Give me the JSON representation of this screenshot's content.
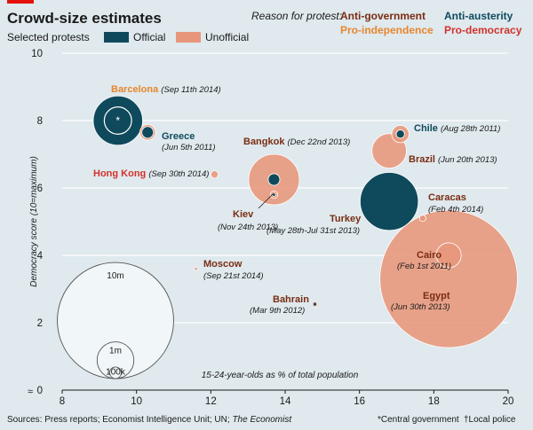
{
  "chart_data": {
    "type": "scatter",
    "title": "Crowd-size estimates",
    "subtitle": "Selected protests",
    "legend": {
      "official_label": "Official",
      "unofficial_label": "Unofficial",
      "official_color": "#0f4a5c",
      "unofficial_color": "#e8967b"
    },
    "reason": {
      "title": "Reason for protest:",
      "categories": [
        {
          "key": "anti-government",
          "label": "Anti-government",
          "color": "#7a2d12"
        },
        {
          "key": "anti-austerity",
          "label": "Anti-austerity",
          "color": "#0f4a5c"
        },
        {
          "key": "pro-independence",
          "label": "Pro-independence",
          "color": "#e8862c"
        },
        {
          "key": "pro-democracy",
          "label": "Pro-democracy",
          "color": "#d3322b"
        }
      ]
    },
    "xlabel": "15-24-year-olds as % of total population",
    "ylabel": "Democracy score (10=maximum)",
    "xlim": [
      8,
      20
    ],
    "ylim": [
      0,
      10
    ],
    "xticks": [
      "8",
      "10",
      "12",
      "14",
      "16",
      "18",
      "20"
    ],
    "yticks": [
      "0",
      "2",
      "4",
      "6",
      "8",
      "10"
    ],
    "protests": [
      {
        "name": "Barcelona",
        "date": "(Sep 11th 2014)",
        "category": "pro-independence",
        "x": 9.5,
        "y": 8.0,
        "official_millions": 1.8,
        "unofficial_millions": 0.55,
        "official_marker": "*"
      },
      {
        "name": "Greece",
        "date": "(Jun 5th 2011)",
        "category": "anti-austerity",
        "x": 10.3,
        "y": 7.65,
        "official_millions": 0.1,
        "unofficial_millions": 0.18
      },
      {
        "name": "Hong Kong",
        "date": "(Sep 30th 2014)",
        "category": "pro-democracy",
        "x": 12.1,
        "y": 6.4,
        "unofficial_millions": 0.04
      },
      {
        "name": "Bangkok",
        "date": "(Dec 22nd 2013)",
        "category": "anti-government",
        "x": 13.7,
        "y": 6.25,
        "official_millions": 0.1,
        "unofficial_millions": 1.9
      },
      {
        "name": "Kiev",
        "date": "(Nov 24th 2013)",
        "category": "anti-government",
        "x": 13.7,
        "y": 5.8,
        "official_millions": 0.007,
        "unofficial_millions": 0.04,
        "official_marker": "†"
      },
      {
        "name": "Chile",
        "date": "(Aug 28th 2011)",
        "category": "anti-austerity",
        "x": 17.1,
        "y": 7.6,
        "official_millions": 0.05,
        "unofficial_millions": 0.22
      },
      {
        "name": "Brazil",
        "date": "(Jun 20th 2013)",
        "category": "anti-government",
        "x": 16.8,
        "y": 7.1,
        "unofficial_millions": 0.88
      },
      {
        "name": "Turkey",
        "date": "(May 28th-Jul 31st 2013)",
        "category": "anti-government",
        "x": 16.8,
        "y": 5.6,
        "official_millions": 2.5
      },
      {
        "name": "Caracas",
        "date": "(Feb 4th 2014)",
        "category": "anti-government",
        "x": 17.7,
        "y": 5.1,
        "unofficial_millions": 0.03
      },
      {
        "name": "Cairo",
        "date": "(Feb 1st 2011)",
        "category": "anti-government",
        "x": 18.4,
        "y": 4.0,
        "unofficial_millions": 0.46
      },
      {
        "name": "Egypt",
        "date": "(Jun 30th 2013)",
        "category": "anti-government",
        "x": 18.4,
        "y": 3.3,
        "unofficial_millions": 14.0
      },
      {
        "name": "Moscow",
        "date": "(Sep 21st 2014)",
        "category": "anti-government",
        "x": 11.6,
        "y": 3.6,
        "unofficial_millions": 0.008
      },
      {
        "name": "Bahrain",
        "date": "(Mar 9th 2012)",
        "category": "anti-government",
        "x": 14.8,
        "y": 2.55,
        "official_millions": 0.01,
        "unofficial_millions": 0.03
      }
    ],
    "size_scale": [
      {
        "label": "10m",
        "millions": 10
      },
      {
        "label": "1m",
        "millions": 1
      },
      {
        "label": "100k",
        "millions": 0.1
      }
    ]
  },
  "footer": {
    "sources_prefix": "Sources: Press reports; Economist Intelligence Unit; UN; ",
    "sources_italic": "The Economist",
    "note_star": "*Central government",
    "note_dagger": "†Local police"
  }
}
